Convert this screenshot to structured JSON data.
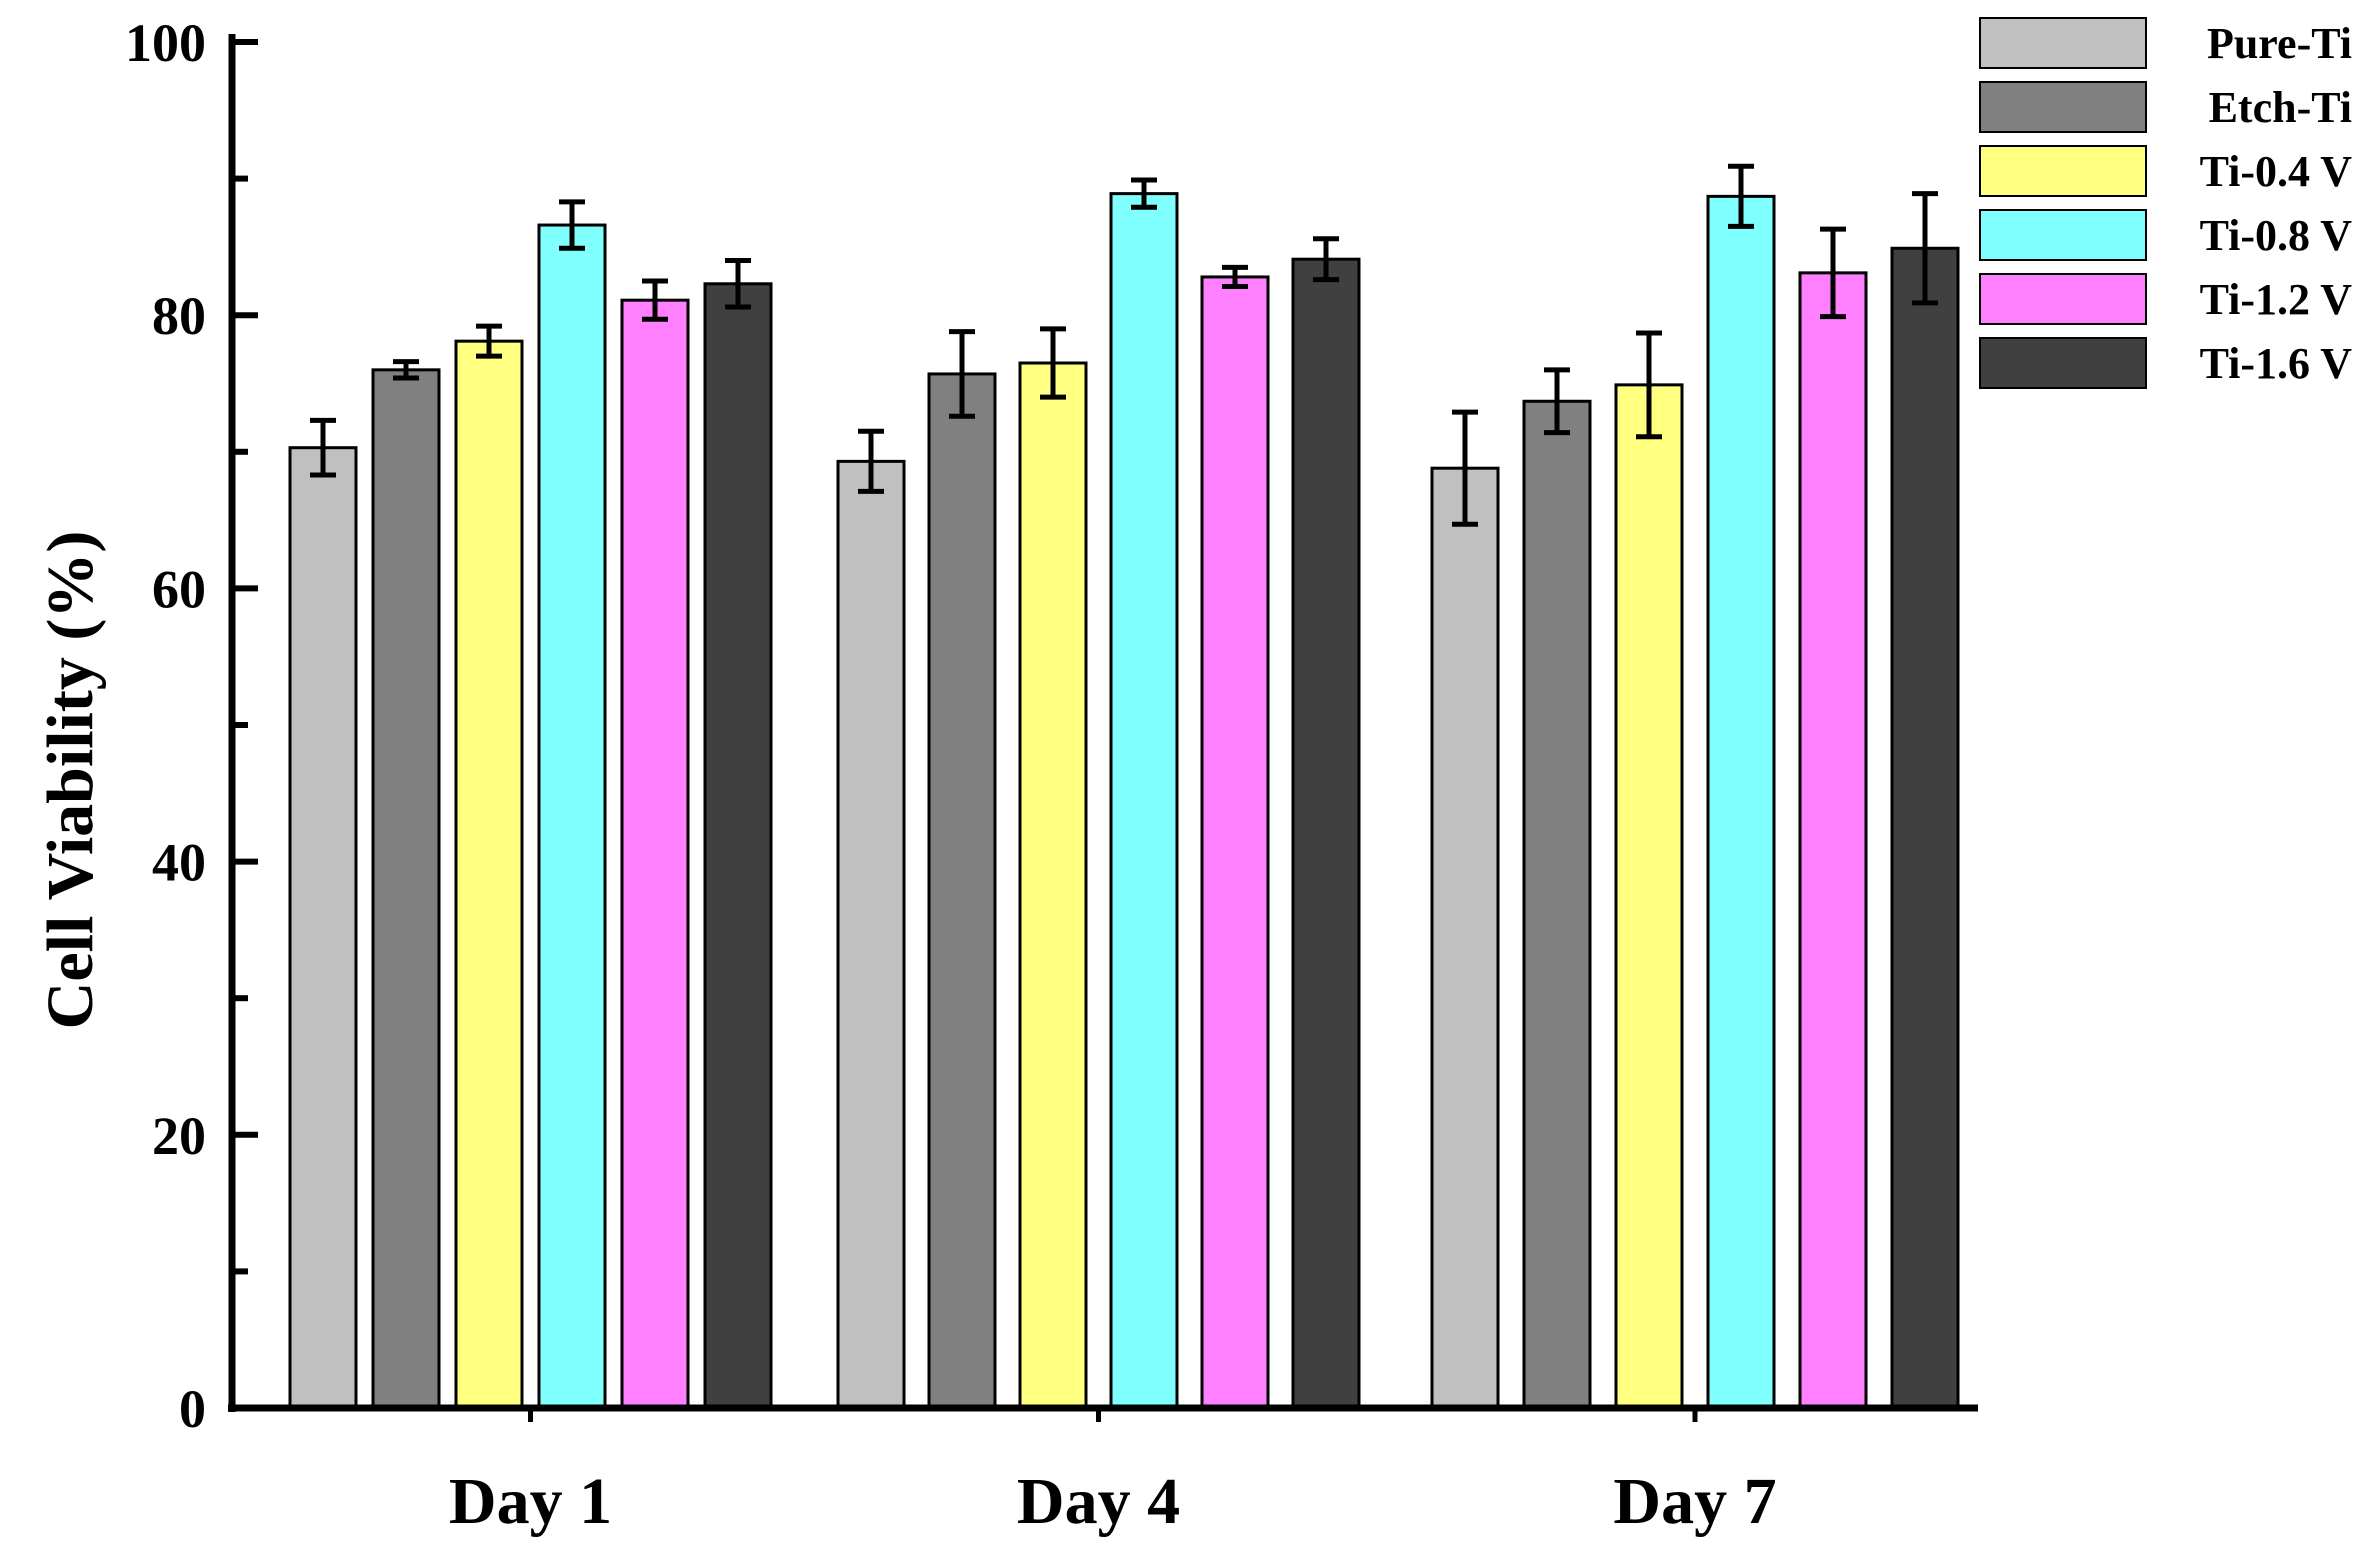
{
  "chart_data": {
    "type": "bar",
    "title": "",
    "xlabel": "",
    "ylabel": "Cell Viability (%)",
    "ylim": [
      0,
      100
    ],
    "yticks": [
      "0",
      "20",
      "40",
      "60",
      "80",
      "100"
    ],
    "categories": [
      "Day 1",
      "Day 4",
      "Day 7"
    ],
    "legend_position": "top-right",
    "series": [
      {
        "name": "Pure-Ti",
        "color": "#c0c0c0",
        "values": [
          70.3,
          69.3,
          68.8
        ],
        "errors": [
          2.0,
          2.2,
          4.1
        ]
      },
      {
        "name": "Etch-Ti",
        "color": "#808080",
        "values": [
          76.0,
          75.7,
          73.7
        ],
        "errors": [
          0.6,
          3.1,
          2.3
        ]
      },
      {
        "name": "Ti-0.4 V",
        "color": "#ffff80",
        "values": [
          78.1,
          76.5,
          74.9
        ],
        "errors": [
          1.1,
          2.5,
          3.8
        ]
      },
      {
        "name": "Ti-0.8 V",
        "color": "#80ffff",
        "values": [
          86.6,
          88.9,
          88.7
        ],
        "errors": [
          1.7,
          1.0,
          2.2
        ]
      },
      {
        "name": "Ti-1.2 V",
        "color": "#ff80ff",
        "values": [
          81.1,
          82.8,
          83.1
        ],
        "errors": [
          1.4,
          0.7,
          3.2
        ]
      },
      {
        "name": "Ti-1.6 V",
        "color": "#404040",
        "values": [
          82.3,
          84.1,
          84.9
        ],
        "errors": [
          1.7,
          1.5,
          4.0
        ]
      }
    ]
  }
}
